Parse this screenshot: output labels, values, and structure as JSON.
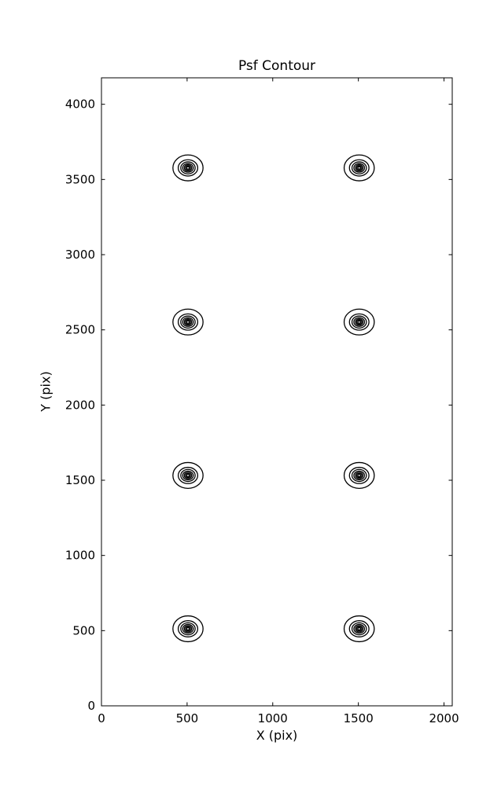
{
  "figure": {
    "background_color": "#ffffff",
    "foreground_color": "#000000"
  },
  "chart_data": {
    "type": "contour",
    "title": "Psf Contour",
    "xlabel": "X (pix)",
    "ylabel": "Y (pix)",
    "xlim": [
      0,
      2048
    ],
    "ylim": [
      0,
      4176
    ],
    "xticks": [
      0,
      500,
      1000,
      1500,
      2000
    ],
    "yticks": [
      0,
      500,
      1000,
      1500,
      2000,
      2500,
      3000,
      3500,
      4000
    ],
    "grid": false,
    "legend": null,
    "line_color": "#000000",
    "clusters": {
      "description": "8 PSF contour clusters on a 2-column by 4-row grid; each cluster is a set of nested near-circular contour levels",
      "x_positions": [
        505,
        1505
      ],
      "y_positions": [
        512,
        1532,
        2552,
        3577
      ],
      "contour_radii_pix": [
        [
          88,
          86
        ],
        [
          57,
          54
        ],
        [
          42,
          40
        ],
        [
          31,
          29
        ],
        [
          22,
          21
        ],
        [
          15,
          14
        ],
        [
          8,
          8
        ]
      ]
    }
  }
}
